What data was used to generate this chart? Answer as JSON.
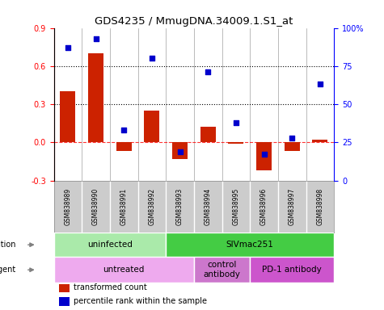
{
  "title": "GDS4235 / MmugDNA.34009.1.S1_at",
  "samples": [
    "GSM838989",
    "GSM838990",
    "GSM838991",
    "GSM838992",
    "GSM838993",
    "GSM838994",
    "GSM838995",
    "GSM838996",
    "GSM838997",
    "GSM838998"
  ],
  "bar_values": [
    0.4,
    0.7,
    -0.07,
    0.25,
    -0.13,
    0.12,
    -0.01,
    -0.22,
    -0.07,
    0.02
  ],
  "scatter_values": [
    87,
    93,
    33,
    80,
    19,
    71,
    38,
    17,
    28,
    63
  ],
  "bar_color": "#cc2200",
  "scatter_color": "#0000cc",
  "ylim_left": [
    -0.3,
    0.9
  ],
  "ylim_right": [
    0,
    100
  ],
  "yticks_left": [
    -0.3,
    0.0,
    0.3,
    0.6,
    0.9
  ],
  "yticks_right": [
    0,
    25,
    50,
    75,
    100
  ],
  "ytick_labels_right": [
    "0",
    "25",
    "50",
    "75",
    "100%"
  ],
  "hlines": [
    0.3,
    0.6
  ],
  "infection_groups": [
    {
      "label": "uninfected",
      "start": 0,
      "end": 4,
      "color": "#aaeaaa"
    },
    {
      "label": "SIVmac251",
      "start": 4,
      "end": 10,
      "color": "#44cc44"
    }
  ],
  "agent_groups": [
    {
      "label": "untreated",
      "start": 0,
      "end": 5,
      "color": "#eeaaee"
    },
    {
      "label": "control\nantibody",
      "start": 5,
      "end": 7,
      "color": "#cc77cc"
    },
    {
      "label": "PD-1 antibody",
      "start": 7,
      "end": 10,
      "color": "#cc55cc"
    }
  ],
  "legend_items": [
    {
      "label": "transformed count",
      "color": "#cc2200"
    },
    {
      "label": "percentile rank within the sample",
      "color": "#0000cc"
    }
  ],
  "sample_bg_color": "#cccccc",
  "background_color": "#ffffff"
}
